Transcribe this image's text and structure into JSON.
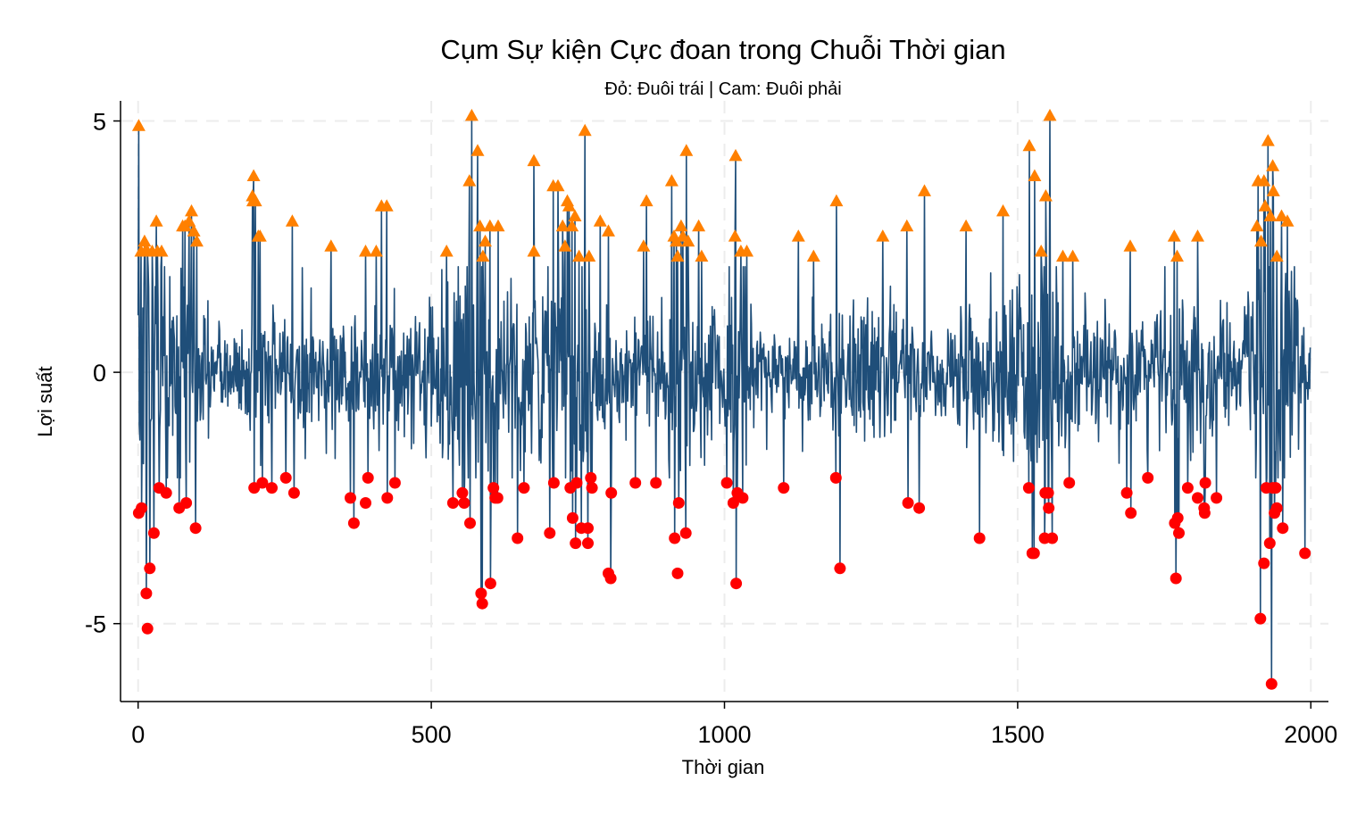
{
  "chart_data": {
    "type": "line",
    "title": "Cụm Sự kiện Cực đoan trong Chuỗi Thời gian",
    "subtitle": "Đỏ: Đuôi trái | Cam: Đuôi phải",
    "xlabel": "Thời gian",
    "ylabel": "Lợi suất",
    "xlim": [
      -30,
      2030
    ],
    "ylim": [
      -6.55,
      5.4
    ],
    "x_ticks": [
      0,
      500,
      1000,
      1500,
      2000
    ],
    "y_ticks": [
      -5,
      0,
      5
    ],
    "grid": true,
    "legend": "none",
    "n_points": 2000,
    "series_color": "#1f4e79",
    "left_tail_color": "#ff0000",
    "right_tail_color": "#ff8000",
    "left_tail": [
      [
        1,
        -2.8
      ],
      [
        6,
        -2.7
      ],
      [
        14,
        -4.4
      ],
      [
        16,
        -5.1
      ],
      [
        20,
        -3.9
      ],
      [
        27,
        -3.2
      ],
      [
        36,
        -2.3
      ],
      [
        48,
        -2.4
      ],
      [
        70,
        -2.7
      ],
      [
        82,
        -2.6
      ],
      [
        98,
        -3.1
      ],
      [
        198,
        -2.3
      ],
      [
        212,
        -2.2
      ],
      [
        228,
        -2.3
      ],
      [
        252,
        -2.1
      ],
      [
        266,
        -2.4
      ],
      [
        362,
        -2.5
      ],
      [
        368,
        -3.0
      ],
      [
        388,
        -2.6
      ],
      [
        392,
        -2.1
      ],
      [
        425,
        -2.5
      ],
      [
        438,
        -2.2
      ],
      [
        537,
        -2.6
      ],
      [
        553,
        -2.4
      ],
      [
        556,
        -2.6
      ],
      [
        566,
        -3.0
      ],
      [
        585,
        -4.4
      ],
      [
        587,
        -4.6
      ],
      [
        601,
        -4.2
      ],
      [
        606,
        -2.3
      ],
      [
        609,
        -2.5
      ],
      [
        613,
        -2.5
      ],
      [
        647,
        -3.3
      ],
      [
        658,
        -2.3
      ],
      [
        702,
        -3.2
      ],
      [
        709,
        -2.2
      ],
      [
        737,
        -2.3
      ],
      [
        741,
        -2.9
      ],
      [
        746,
        -3.4
      ],
      [
        748,
        -2.2
      ],
      [
        756,
        -3.1
      ],
      [
        767,
        -3.1
      ],
      [
        767,
        -3.4
      ],
      [
        772,
        -2.1
      ],
      [
        774,
        -2.3
      ],
      [
        802,
        -4.0
      ],
      [
        806,
        -4.1
      ],
      [
        807,
        -2.4
      ],
      [
        848,
        -2.2
      ],
      [
        883,
        -2.2
      ],
      [
        915,
        -3.3
      ],
      [
        920,
        -4.0
      ],
      [
        922,
        -2.6
      ],
      [
        934,
        -3.2
      ],
      [
        1004,
        -2.2
      ],
      [
        1015,
        -2.6
      ],
      [
        1020,
        -4.2
      ],
      [
        1022,
        -2.4
      ],
      [
        1031,
        -2.5
      ],
      [
        1101,
        -2.3
      ],
      [
        1190,
        -2.1
      ],
      [
        1197,
        -3.9
      ],
      [
        1313,
        -2.6
      ],
      [
        1332,
        -2.7
      ],
      [
        1435,
        -3.3
      ],
      [
        1519,
        -2.3
      ],
      [
        1525,
        -3.6
      ],
      [
        1528,
        -3.6
      ],
      [
        1546,
        -3.3
      ],
      [
        1547,
        -2.4
      ],
      [
        1552,
        -2.4
      ],
      [
        1553,
        -2.7
      ],
      [
        1559,
        -3.3
      ],
      [
        1588,
        -2.2
      ],
      [
        1686,
        -2.4
      ],
      [
        1693,
        -2.8
      ],
      [
        1722,
        -2.1
      ],
      [
        1768,
        -3.0
      ],
      [
        1770,
        -4.1
      ],
      [
        1773,
        -2.9
      ],
      [
        1775,
        -3.2
      ],
      [
        1790,
        -2.3
      ],
      [
        1807,
        -2.5
      ],
      [
        1818,
        -2.7
      ],
      [
        1819,
        -2.8
      ],
      [
        1820,
        -2.2
      ],
      [
        1839,
        -2.5
      ],
      [
        1914,
        -4.9
      ],
      [
        1920,
        -3.8
      ],
      [
        1924,
        -2.3
      ],
      [
        1930,
        -3.4
      ],
      [
        1933,
        -6.2
      ],
      [
        1935,
        -2.3
      ],
      [
        1938,
        -2.8
      ],
      [
        1940,
        -2.3
      ],
      [
        1942,
        -2.7
      ],
      [
        1952,
        -3.1
      ],
      [
        1990,
        -3.6
      ]
    ],
    "right_tail": [
      [
        1,
        4.9
      ],
      [
        5,
        2.4
      ],
      [
        11,
        2.6
      ],
      [
        12,
        2.4
      ],
      [
        16,
        2.4
      ],
      [
        24,
        2.4
      ],
      [
        31,
        3.0
      ],
      [
        33,
        2.4
      ],
      [
        40,
        2.4
      ],
      [
        76,
        2.9
      ],
      [
        80,
        2.9
      ],
      [
        87,
        3.0
      ],
      [
        91,
        3.2
      ],
      [
        95,
        2.8
      ],
      [
        100,
        2.6
      ],
      [
        195,
        3.5
      ],
      [
        196,
        3.4
      ],
      [
        197,
        3.9
      ],
      [
        200,
        3.4
      ],
      [
        205,
        2.7
      ],
      [
        208,
        2.7
      ],
      [
        263,
        3.0
      ],
      [
        329,
        2.5
      ],
      [
        388,
        2.4
      ],
      [
        406,
        2.4
      ],
      [
        415,
        3.3
      ],
      [
        424,
        3.3
      ],
      [
        526,
        2.4
      ],
      [
        565,
        3.8
      ],
      [
        569,
        5.1
      ],
      [
        579,
        4.4
      ],
      [
        583,
        2.9
      ],
      [
        588,
        2.3
      ],
      [
        592,
        2.6
      ],
      [
        600,
        2.9
      ],
      [
        614,
        2.9
      ],
      [
        675,
        2.4
      ],
      [
        675,
        4.2
      ],
      [
        708,
        3.7
      ],
      [
        716,
        3.7
      ],
      [
        724,
        2.9
      ],
      [
        728,
        2.5
      ],
      [
        732,
        3.4
      ],
      [
        735,
        3.3
      ],
      [
        740,
        2.9
      ],
      [
        745,
        3.1
      ],
      [
        752,
        2.3
      ],
      [
        762,
        4.8
      ],
      [
        769,
        2.3
      ],
      [
        788,
        3.0
      ],
      [
        802,
        2.8
      ],
      [
        862,
        2.5
      ],
      [
        867,
        3.4
      ],
      [
        910,
        3.8
      ],
      [
        914,
        2.7
      ],
      [
        918,
        2.6
      ],
      [
        920,
        2.3
      ],
      [
        926,
        2.9
      ],
      [
        929,
        2.7
      ],
      [
        935,
        4.4
      ],
      [
        938,
        2.6
      ],
      [
        956,
        2.9
      ],
      [
        961,
        2.3
      ],
      [
        1018,
        2.7
      ],
      [
        1019,
        4.3
      ],
      [
        1028,
        2.4
      ],
      [
        1038,
        2.4
      ],
      [
        1126,
        2.7
      ],
      [
        1152,
        2.3
      ],
      [
        1191,
        3.4
      ],
      [
        1270,
        2.7
      ],
      [
        1311,
        2.9
      ],
      [
        1341,
        3.6
      ],
      [
        1412,
        2.9
      ],
      [
        1475,
        3.2
      ],
      [
        1520,
        4.5
      ],
      [
        1529,
        3.9
      ],
      [
        1540,
        2.4
      ],
      [
        1548,
        3.5
      ],
      [
        1555,
        5.1
      ],
      [
        1577,
        2.3
      ],
      [
        1594,
        2.3
      ],
      [
        1692,
        2.5
      ],
      [
        1767,
        2.7
      ],
      [
        1772,
        2.3
      ],
      [
        1807,
        2.7
      ],
      [
        1908,
        2.9
      ],
      [
        1910,
        3.8
      ],
      [
        1915,
        2.6
      ],
      [
        1920,
        3.8
      ],
      [
        1922,
        3.3
      ],
      [
        1927,
        4.6
      ],
      [
        1931,
        3.1
      ],
      [
        1935,
        4.1
      ],
      [
        1936,
        3.6
      ],
      [
        1942,
        2.3
      ],
      [
        1950,
        3.1
      ],
      [
        1960,
        3.0
      ]
    ]
  }
}
